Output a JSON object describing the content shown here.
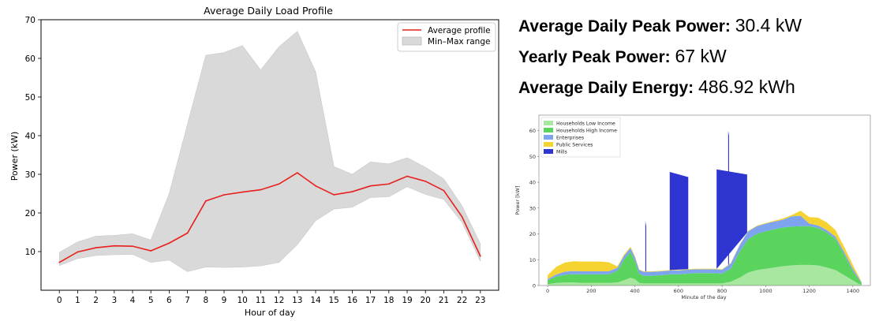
{
  "chart_data": [
    {
      "type": "line",
      "title": "Average Daily Load Profile",
      "xlabel": "Hour of day",
      "ylabel": "Power (kW)",
      "xlim": [
        -1,
        24
      ],
      "ylim": [
        0,
        70
      ],
      "x": [
        0,
        1,
        2,
        3,
        4,
        5,
        6,
        7,
        8,
        9,
        10,
        11,
        12,
        13,
        14,
        15,
        16,
        17,
        18,
        19,
        20,
        21,
        22,
        23
      ],
      "x_ticks": [
        0,
        1,
        2,
        3,
        4,
        5,
        6,
        7,
        8,
        9,
        10,
        11,
        12,
        13,
        14,
        15,
        16,
        17,
        18,
        19,
        20,
        21,
        22,
        23
      ],
      "y_ticks": [
        10,
        20,
        30,
        40,
        50,
        60,
        70
      ],
      "legend_position": "top-right",
      "series": [
        {
          "name": "Average profile",
          "color": "#e8201c",
          "values": [
            7.2,
            9.9,
            11.0,
            11.5,
            11.4,
            10.2,
            12.2,
            14.8,
            23.1,
            24.7,
            25.4,
            26.0,
            27.5,
            30.4,
            27.0,
            24.7,
            25.5,
            27.0,
            27.5,
            29.5,
            28.2,
            25.8,
            19.0,
            8.8
          ]
        },
        {
          "name": "Min–Max range",
          "color": "#d9d9d9",
          "kind": "band",
          "min": [
            6.4,
            8.2,
            9.0,
            9.2,
            9.3,
            7.2,
            7.8,
            4.8,
            6.0,
            5.9,
            6.0,
            6.3,
            7.2,
            11.8,
            18.0,
            21.0,
            21.5,
            24.0,
            24.2,
            26.8,
            24.8,
            23.5,
            17.5,
            7.5
          ],
          "max": [
            9.8,
            12.5,
            14.0,
            14.2,
            14.6,
            13.0,
            25.0,
            43.0,
            60.8,
            61.5,
            63.3,
            57.0,
            63.0,
            67.0,
            56.5,
            32.0,
            30.0,
            33.2,
            32.7,
            34.3,
            31.8,
            28.8,
            21.8,
            12.0
          ]
        }
      ]
    },
    {
      "type": "area",
      "title": "",
      "xlabel": "Minute of the day",
      "ylabel": "Power [kW]",
      "xlim": [
        -40,
        1480
      ],
      "ylim": [
        0,
        66
      ],
      "x_ticks": [
        0,
        200,
        400,
        600,
        800,
        1000,
        1200,
        1400
      ],
      "y_ticks": [
        0,
        10,
        20,
        30,
        40,
        50,
        60
      ],
      "legend_position": "top-left",
      "x": [
        0,
        40,
        80,
        120,
        160,
        200,
        240,
        280,
        320,
        350,
        380,
        400,
        420,
        440,
        460,
        480,
        520,
        560,
        600,
        640,
        680,
        720,
        760,
        800,
        840,
        880,
        920,
        960,
        1000,
        1040,
        1080,
        1120,
        1160,
        1200,
        1240,
        1280,
        1320,
        1360,
        1400,
        1430,
        1440
      ],
      "series": [
        {
          "name": "Households Low Income",
          "color": "#a8e7a0",
          "values": [
            0.5,
            1.0,
            1.2,
            1.2,
            1.0,
            1.0,
            1.0,
            1.0,
            1.2,
            2.0,
            3.0,
            2.5,
            1.0,
            0.8,
            0.8,
            0.8,
            0.8,
            0.8,
            0.8,
            0.8,
            0.8,
            0.8,
            0.8,
            0.8,
            1.5,
            3.0,
            5.0,
            6.0,
            6.5,
            7.0,
            7.5,
            7.8,
            8.0,
            8.0,
            7.8,
            7.0,
            6.0,
            4.0,
            2.0,
            0.5,
            0.3
          ]
        },
        {
          "name": "Households High Income",
          "color": "#5ad45c",
          "values": [
            1.5,
            2.5,
            3.0,
            3.2,
            3.3,
            3.3,
            3.3,
            3.3,
            4.5,
            8.0,
            10.0,
            7.0,
            3.5,
            3.0,
            3.0,
            3.0,
            3.2,
            3.5,
            3.5,
            3.8,
            4.0,
            4.0,
            4.0,
            3.8,
            5.0,
            10.0,
            13.0,
            14.0,
            14.5,
            14.8,
            15.0,
            15.0,
            15.0,
            15.0,
            14.5,
            13.5,
            12.0,
            8.0,
            3.5,
            1.5,
            0.5
          ]
        },
        {
          "name": "Enterprises",
          "color": "#7ea4f0",
          "values": [
            0.5,
            0.8,
            1.2,
            1.2,
            1.2,
            1.2,
            1.2,
            1.2,
            1.2,
            1.5,
            1.5,
            1.5,
            1.5,
            1.5,
            1.5,
            1.5,
            1.5,
            1.5,
            1.5,
            1.5,
            1.5,
            1.5,
            1.5,
            1.5,
            2.0,
            2.5,
            3.0,
            3.0,
            3.0,
            3.0,
            3.0,
            4.0,
            4.0,
            1.0,
            1.0,
            1.0,
            1.0,
            1.0,
            1.0,
            0.5,
            0.3
          ]
        },
        {
          "name": "Public Services",
          "color": "#f5d330",
          "values": [
            1.5,
            3.0,
            3.5,
            3.8,
            3.8,
            3.8,
            3.8,
            3.5,
            0.5,
            0.5,
            0.5,
            0.5,
            0.2,
            0.2,
            0.2,
            0.2,
            0.2,
            0.2,
            0.2,
            0.2,
            0.2,
            0.2,
            0.2,
            0.2,
            0.2,
            0.2,
            0.2,
            0.2,
            0.2,
            0.3,
            0.5,
            0.5,
            2.0,
            2.5,
            3.0,
            3.0,
            2.5,
            2.0,
            1.5,
            0.5,
            0.2
          ]
        },
        {
          "name": "Mills",
          "color": "#2f35d0",
          "values": [
            0,
            0,
            0,
            0,
            0,
            0,
            0,
            0,
            0,
            0,
            0,
            0,
            0,
            0,
            0,
            0,
            0,
            0,
            0,
            0,
            0,
            0,
            0,
            0,
            0,
            0,
            0,
            0,
            0,
            0,
            0,
            0,
            0,
            0,
            0,
            0,
            0,
            0,
            0,
            0,
            0
          ],
          "bursts": [
            {
              "from": 560,
              "to": 645,
              "top": 44
            },
            {
              "from": 775,
              "to": 915,
              "top": 45
            },
            {
              "from": 828,
              "to": 832,
              "top": 60
            },
            {
              "from": 448,
              "to": 452,
              "top": 25
            }
          ]
        }
      ]
    }
  ],
  "stats": [
    {
      "label": "Average Daily Peak Power:",
      "value": "30.4 kW"
    },
    {
      "label": "Yearly Peak Power:",
      "value": "67 kW"
    },
    {
      "label": "Average Daily Energy:",
      "value": "486.92 kWh"
    }
  ]
}
